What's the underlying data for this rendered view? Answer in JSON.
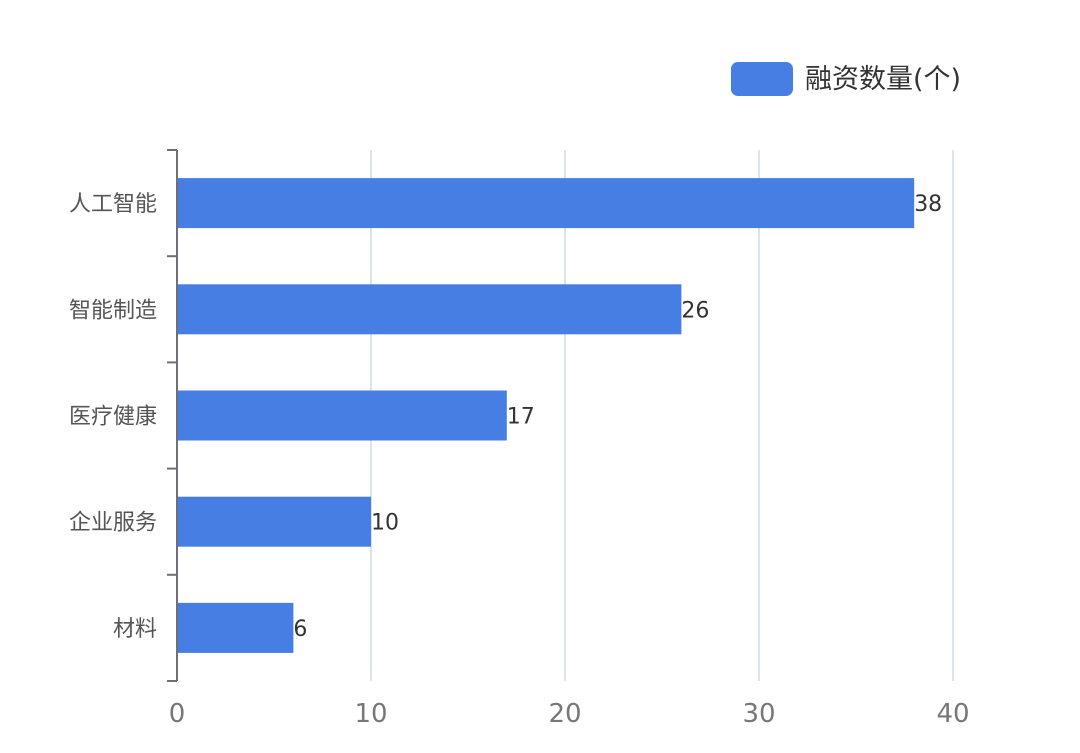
{
  "chart_data": {
    "type": "bar",
    "orientation": "horizontal",
    "categories": [
      "人工智能",
      "智能制造",
      "医疗健康",
      "企业服务",
      "材料"
    ],
    "series": [
      {
        "name": "融资数量(个)",
        "values": [
          38,
          26,
          17,
          10,
          6
        ],
        "color": "#467ee3"
      }
    ],
    "xlim": [
      0,
      40
    ],
    "xticks": [
      0,
      10,
      20,
      30,
      40
    ],
    "grid": true,
    "legend_position": "top-right",
    "data_labels": true
  }
}
